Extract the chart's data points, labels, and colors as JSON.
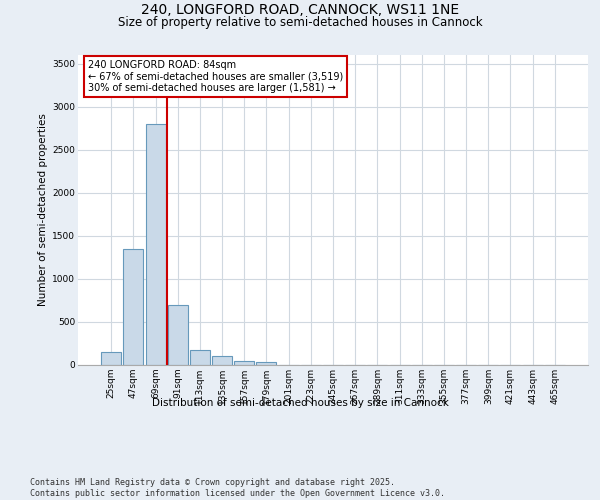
{
  "title_line1": "240, LONGFORD ROAD, CANNOCK, WS11 1NE",
  "title_line2": "Size of property relative to semi-detached houses in Cannock",
  "xlabel": "Distribution of semi-detached houses by size in Cannock",
  "ylabel": "Number of semi-detached properties",
  "categories": [
    "25sqm",
    "47sqm",
    "69sqm",
    "91sqm",
    "113sqm",
    "135sqm",
    "157sqm",
    "179sqm",
    "201sqm",
    "223sqm",
    "245sqm",
    "267sqm",
    "289sqm",
    "311sqm",
    "333sqm",
    "355sqm",
    "377sqm",
    "399sqm",
    "421sqm",
    "443sqm",
    "465sqm"
  ],
  "values": [
    150,
    1350,
    2800,
    700,
    175,
    100,
    50,
    30,
    5,
    2,
    1,
    0,
    0,
    0,
    0,
    0,
    0,
    0,
    0,
    0,
    0
  ],
  "bar_color": "#c9d9e8",
  "bar_edgecolor": "#6699bb",
  "bar_linewidth": 0.8,
  "vline_color": "#cc0000",
  "vline_linewidth": 1.5,
  "vline_x": 2.5,
  "annotation_text": "240 LONGFORD ROAD: 84sqm\n← 67% of semi-detached houses are smaller (3,519)\n30% of semi-detached houses are larger (1,581) →",
  "annotation_box_color": "#cc0000",
  "annotation_text_color": "#000000",
  "ylim": [
    0,
    3600
  ],
  "yticks": [
    0,
    500,
    1000,
    1500,
    2000,
    2500,
    3000,
    3500
  ],
  "background_color": "#e8eef5",
  "plot_background": "#ffffff",
  "grid_color": "#d0d8e0",
  "footnote": "Contains HM Land Registry data © Crown copyright and database right 2025.\nContains public sector information licensed under the Open Government Licence v3.0.",
  "fig_width": 6.0,
  "fig_height": 5.0,
  "title_fontsize": 10,
  "subtitle_fontsize": 8.5,
  "axis_label_fontsize": 7.5,
  "tick_fontsize": 6.5,
  "annotation_fontsize": 7,
  "footnote_fontsize": 6
}
